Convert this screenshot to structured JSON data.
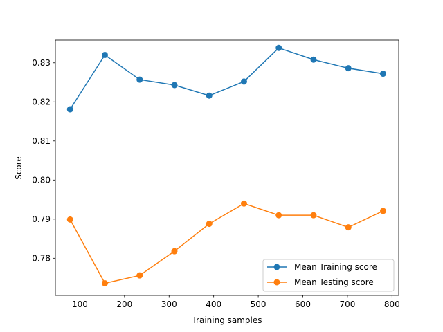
{
  "chart_data": {
    "type": "line",
    "title": "",
    "xlabel": "Training samples",
    "ylabel": "Score",
    "xlim": [
      45,
      815
    ],
    "ylim": [
      0.7705,
      0.8358
    ],
    "xticks": [
      100,
      200,
      300,
      400,
      500,
      600,
      700,
      800
    ],
    "xtick_labels": [
      "100",
      "200",
      "300",
      "400",
      "500",
      "600",
      "700",
      "800"
    ],
    "yticks": [
      0.78,
      0.79,
      0.8,
      0.81,
      0.82,
      0.83
    ],
    "ytick_labels": [
      "0.78",
      "0.79",
      "0.80",
      "0.81",
      "0.82",
      "0.83"
    ],
    "grid": false,
    "legend_position": "lower-right",
    "x": [
      78,
      156,
      234,
      312,
      390,
      468,
      546,
      624,
      702,
      780
    ],
    "series": [
      {
        "name": "Mean Training score",
        "color": "#1f77b4",
        "marker": "circle",
        "values": [
          0.8181,
          0.832,
          0.8257,
          0.8243,
          0.8216,
          0.8252,
          0.8338,
          0.8308,
          0.8286,
          0.8272
        ]
      },
      {
        "name": "Mean Testing score",
        "color": "#ff7f0e",
        "marker": "circle",
        "values": [
          0.7899,
          0.7736,
          0.7756,
          0.7818,
          0.7888,
          0.794,
          0.791,
          0.791,
          0.7879,
          0.7921
        ]
      }
    ]
  }
}
